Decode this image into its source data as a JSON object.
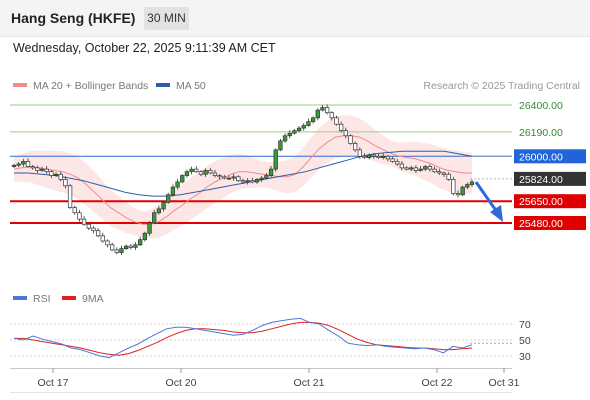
{
  "header": {
    "title": "Hang Seng (HKFE)",
    "timeframe": "30 MIN"
  },
  "datetime": "Wednesday, October 22, 2025 9:11:39 AM CET",
  "legend": [
    {
      "label": "MA 20 + Bollinger Bands",
      "color": "#ef8b8b"
    },
    {
      "label": "MA 50",
      "color": "#2d5ea7"
    }
  ],
  "credit": "Research © 2025 Trading Central",
  "rsi_legend": [
    {
      "label": "RSI",
      "color": "#4a78d8"
    },
    {
      "label": "9MA",
      "color": "#e02020"
    }
  ],
  "chart_data": [
    {
      "type": "candlestick",
      "x_ticks": [
        "Oct 17",
        "Oct 20",
        "Oct 21",
        "Oct 22",
        "Oct 31"
      ],
      "ylim": [
        25200,
        26500
      ],
      "levels": [
        {
          "value": 26400,
          "label": "26400.00",
          "style": "green-line"
        },
        {
          "value": 26190,
          "label": "26190.00",
          "style": "green-line"
        },
        {
          "value": 26000,
          "label": "26000.00",
          "style": "blue-line"
        },
        {
          "value": 25824,
          "label": "25824.00",
          "style": "current-price"
        },
        {
          "value": 25650,
          "label": "25650.00",
          "style": "red-line"
        },
        {
          "value": 25480,
          "label": "25480.00",
          "style": "red-line"
        }
      ],
      "prices": [
        25930,
        25940,
        25960,
        25920,
        25910,
        25890,
        25900,
        25880,
        25850,
        25860,
        25820,
        25770,
        25600,
        25560,
        25510,
        25470,
        25440,
        25420,
        25380,
        25340,
        25310,
        25270,
        25250,
        25280,
        25300,
        25290,
        25310,
        25350,
        25400,
        25480,
        25560,
        25590,
        25640,
        25700,
        25760,
        25800,
        25850,
        25880,
        25900,
        25880,
        25860,
        25890,
        25870,
        25850,
        25840,
        25830,
        25830,
        25840,
        25810,
        25800,
        25810,
        25800,
        25820,
        25830,
        25850,
        25900,
        26050,
        26120,
        26160,
        26180,
        26200,
        26220,
        26240,
        26270,
        26300,
        26360,
        26380,
        26340,
        26300,
        26250,
        26200,
        26160,
        26100,
        26050,
        26000,
        25990,
        26010,
        26000,
        25990,
        26000,
        25980,
        25960,
        25940,
        25910,
        25900,
        25910,
        25890,
        25900,
        25920,
        25900,
        25880,
        25870,
        25860,
        25820,
        25710,
        25700,
        25760,
        25780,
        25800
      ],
      "ma20": [
        25900,
        25910,
        25920,
        25910,
        25900,
        25890,
        25880,
        25860,
        25830,
        25780,
        25720,
        25660,
        25600,
        25560,
        25520,
        25490,
        25470,
        25470,
        25490,
        25530,
        25580,
        25620,
        25670,
        25710,
        25760,
        25800,
        25830,
        25860,
        25880,
        25880,
        25870,
        25860,
        25850,
        25840,
        25840,
        25860,
        25920,
        25990,
        26060,
        26110,
        26150,
        26160,
        26160,
        26150,
        26120,
        26080,
        26050,
        26020,
        26000,
        25990,
        25980,
        25960,
        25940,
        25910,
        25890,
        25880,
        25870,
        25870
      ],
      "ma50": [
        25870,
        25870,
        25860,
        25850,
        25830,
        25810,
        25780,
        25750,
        25720,
        25700,
        25690,
        25690,
        25700,
        25720,
        25740,
        25760,
        25780,
        25800,
        25820,
        25840,
        25860,
        25880,
        25910,
        25940,
        25970,
        26000,
        26020,
        26030,
        26040,
        26040,
        26040,
        26040,
        26020,
        26000
      ]
    },
    {
      "type": "line",
      "name": "RSI",
      "ylim": [
        20,
        80
      ],
      "y_ticks": [
        "70",
        "50",
        "30"
      ],
      "rsi": [
        52,
        50,
        55,
        51,
        48,
        45,
        40,
        38,
        34,
        30,
        28,
        34,
        40,
        45,
        52,
        58,
        64,
        66,
        66,
        64,
        62,
        60,
        58,
        56,
        57,
        62,
        68,
        72,
        74,
        76,
        77,
        72,
        70,
        62,
        55,
        46,
        44,
        43,
        44,
        42,
        41,
        40,
        39,
        40,
        38,
        34,
        42,
        40,
        44
      ],
      "ma9": [
        52,
        52,
        50,
        48,
        46,
        44,
        42,
        40,
        37,
        34,
        32,
        31,
        33,
        37,
        42,
        47,
        53,
        58,
        62,
        64,
        64,
        63,
        62,
        60,
        59,
        59,
        61,
        64,
        67,
        70,
        72,
        72,
        71,
        68,
        63,
        57,
        51,
        47,
        44,
        43,
        42,
        41,
        40,
        40,
        39,
        38,
        38,
        39,
        40
      ]
    }
  ]
}
